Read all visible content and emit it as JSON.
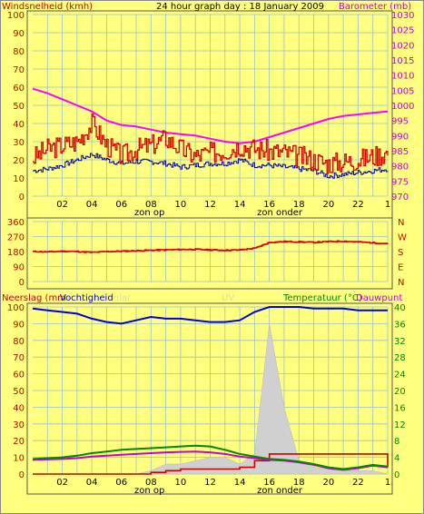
{
  "header": {
    "left_label": "Windsnelheid (kmh)",
    "title": "24 hour graph day : 18 January 2009",
    "right_label": "Barometer (mb)"
  },
  "colors": {
    "background": "#ffff80",
    "wind": "#dd0000",
    "gust_line": "#0000aa",
    "barometer": "#ff00ff",
    "direction": "#dd0000",
    "humidity": "#0000dd",
    "rain": "#cc0000",
    "temperature": "#008800",
    "dewpoint": "#cc00cc",
    "uv": "#d0d0d0",
    "grid": "#9ac0c0"
  },
  "x_ticks": [
    "02",
    "04",
    "06",
    "08",
    "10",
    "12",
    "14",
    "16",
    "18",
    "20",
    "22",
    "1"
  ],
  "markers": {
    "sunrise": "zon op",
    "sunset": "zon onder"
  },
  "panel2": {
    "compass": [
      "N",
      "W",
      "S",
      "E",
      "N"
    ]
  },
  "panel3": {
    "left_label": "Neerslag (mm",
    "left_label2": "Vochtigheid",
    "solar_label": "olar",
    "uv_label": "UV",
    "right_label": "Temperatuur (°C)",
    "right_label2": "Dauwpunt"
  },
  "chart_data": [
    {
      "type": "line",
      "title": "24 hour graph day : 18 January 2009",
      "ylabel": "Windsnelheid (kmh)",
      "y2label": "Barometer (mb)",
      "x": [
        "00",
        "01",
        "02",
        "03",
        "04",
        "05",
        "06",
        "07",
        "08",
        "09",
        "10",
        "11",
        "12",
        "13",
        "14",
        "15",
        "16",
        "17",
        "18",
        "19",
        "20",
        "21",
        "22",
        "23",
        "24"
      ],
      "xticks": [
        "02",
        "04",
        "06",
        "08",
        "10",
        "12",
        "14",
        "16",
        "18",
        "20",
        "22",
        "1"
      ],
      "ylim": [
        0,
        100
      ],
      "yticks": [
        0,
        10,
        20,
        30,
        40,
        50,
        60,
        70,
        80,
        90,
        100
      ],
      "y2lim": [
        970,
        1030
      ],
      "y2ticks": [
        970,
        975,
        980,
        985,
        990,
        995,
        1000,
        1005,
        1010,
        1015,
        1020,
        1025,
        1030
      ],
      "series": [
        {
          "name": "Windsnelheid (kmh)",
          "axis": "left",
          "values": [
            21,
            26,
            28,
            30,
            40,
            28,
            22,
            26,
            28,
            32,
            26,
            22,
            24,
            25,
            28,
            26,
            25,
            24,
            22,
            20,
            18,
            19,
            20,
            22,
            24
          ]
        },
        {
          "name": "",
          "axis": "left",
          "values": [
            14,
            15,
            17,
            20,
            23,
            20,
            18,
            19,
            19,
            18,
            16,
            17,
            18,
            18,
            20,
            17,
            17,
            16,
            15,
            14,
            11,
            12,
            13,
            14,
            15
          ]
        },
        {
          "name": "Barometer (mb)",
          "axis": "right",
          "values": [
            1005.5,
            1004,
            1002,
            1000,
            998,
            995,
            993.5,
            993,
            992,
            991,
            990.5,
            990,
            989,
            988,
            987.5,
            988,
            989.5,
            991,
            992.5,
            994,
            995.5,
            996.5,
            997,
            997.5,
            998
          ]
        }
      ],
      "annotations": [
        "zon op",
        "zon onder"
      ]
    },
    {
      "type": "line",
      "ylim": [
        0,
        360
      ],
      "yticks": [
        0,
        90,
        180,
        270,
        360
      ],
      "y2ticks": [
        "N",
        "W",
        "S",
        "E",
        "N"
      ],
      "x": [
        "00",
        "01",
        "02",
        "03",
        "04",
        "05",
        "06",
        "07",
        "08",
        "09",
        "10",
        "11",
        "12",
        "13",
        "14",
        "15",
        "16",
        "17",
        "18",
        "19",
        "20",
        "21",
        "22",
        "23",
        "24"
      ],
      "series": [
        {
          "name": "",
          "values": [
            180,
            178,
            182,
            180,
            175,
            180,
            182,
            185,
            188,
            190,
            192,
            193,
            190,
            188,
            190,
            200,
            235,
            240,
            238,
            235,
            240,
            242,
            238,
            232,
            228
          ]
        }
      ]
    },
    {
      "type": "line",
      "ylim": [
        0,
        100
      ],
      "yticks": [
        0,
        10,
        20,
        30,
        40,
        50,
        60,
        70,
        80,
        90,
        100
      ],
      "y2lim": [
        0,
        40
      ],
      "y2ticks": [
        0,
        4,
        8,
        12,
        16,
        20,
        24,
        28,
        32,
        36,
        40
      ],
      "x": [
        "00",
        "01",
        "02",
        "03",
        "04",
        "05",
        "06",
        "07",
        "08",
        "09",
        "10",
        "11",
        "12",
        "13",
        "14",
        "15",
        "16",
        "17",
        "18",
        "19",
        "20",
        "21",
        "22",
        "23",
        "24"
      ],
      "series": [
        {
          "name": "Neerslag (mm",
          "axis": "left",
          "values": [
            0,
            0,
            0,
            0,
            0,
            0,
            0,
            0,
            1,
            2,
            3,
            3,
            3,
            3,
            4,
            8,
            12,
            12,
            12,
            12,
            12,
            12,
            12,
            12,
            4
          ]
        },
        {
          "name": "Vochtigheid",
          "axis": "left",
          "values": [
            99,
            98,
            97,
            96,
            93,
            91,
            90,
            92,
            94,
            93,
            93,
            92,
            91,
            91,
            92,
            97,
            100,
            100,
            100,
            99,
            99,
            99,
            98,
            98,
            98
          ]
        },
        {
          "name": "Temperatuur (°C)",
          "axis": "right",
          "values": [
            3.6,
            3.8,
            4.0,
            4.4,
            5.0,
            5.4,
            5.8,
            6.0,
            6.2,
            6.4,
            6.6,
            6.8,
            6.6,
            5.8,
            4.8,
            4.2,
            3.6,
            3.4,
            3.0,
            2.4,
            1.6,
            1.2,
            1.6,
            2.2,
            1.8
          ]
        },
        {
          "name": "Dauwpunt",
          "axis": "right",
          "values": [
            3.4,
            3.5,
            3.6,
            3.8,
            4.2,
            4.4,
            4.6,
            4.8,
            5.0,
            5.2,
            5.3,
            5.4,
            5.2,
            4.8,
            4.2,
            3.8,
            3.4,
            3.2,
            2.8,
            2.2,
            1.4,
            1.0,
            1.4,
            2.0,
            1.6
          ]
        },
        {
          "name": "UV",
          "axis": "left",
          "values": [
            0,
            0,
            0,
            0,
            0,
            0,
            0,
            0,
            2,
            6,
            6,
            8,
            10,
            10,
            6,
            12,
            90,
            40,
            8,
            4,
            3,
            2,
            2,
            2,
            0
          ]
        }
      ],
      "annotations": [
        "zon op",
        "zon onder"
      ]
    }
  ]
}
